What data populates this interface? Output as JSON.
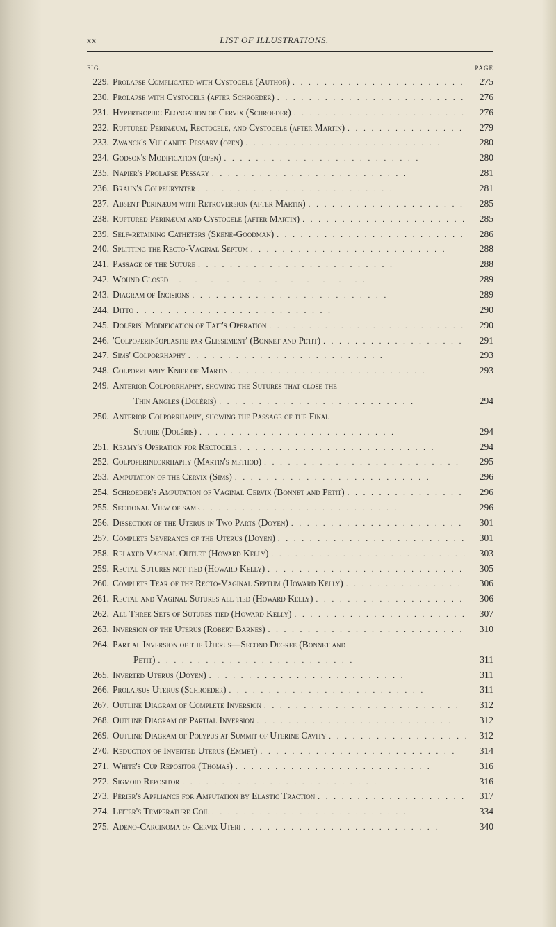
{
  "page": {
    "roman_numeral": "xx",
    "header_title": "LIST OF ILLUSTRATIONS.",
    "fig_label": "FIG.",
    "page_label": "PAGE",
    "colors": {
      "background": "#ebe5d5",
      "text": "#2a2a2a",
      "edge_shadow": "#c8c2b0"
    },
    "typography": {
      "body_font_family": "Georgia, Times New Roman, serif",
      "body_font_size": 13.5,
      "line_height": 1.62,
      "header_font_size": 13,
      "small_caps": true
    }
  },
  "entries": [
    {
      "num": "229.",
      "text": "Prolapse Complicated with Cystocele (Author)",
      "page": "275"
    },
    {
      "num": "230.",
      "text": "Prolapse with Cystocele (after Schroeder)",
      "page": "276"
    },
    {
      "num": "231.",
      "text": "Hypertrophic Elongation of Cervix (Schroeder)",
      "page": "276"
    },
    {
      "num": "232.",
      "text": "Ruptured Perinæum, Rectocele, and Cystocele (after Martin)",
      "page": "279"
    },
    {
      "num": "233.",
      "text": "Zwanck's Vulcanite Pessary (open)",
      "page": "280"
    },
    {
      "num": "234.",
      "text": "Godson's Modification (open)",
      "page": "280"
    },
    {
      "num": "235.",
      "text": "Napier's Prolapse Pessary",
      "page": "281"
    },
    {
      "num": "236.",
      "text": "Braun's Colpeurynter",
      "page": "281"
    },
    {
      "num": "237.",
      "text": "Absent Perinæum with Retroversion (after Martin)",
      "page": "285"
    },
    {
      "num": "238.",
      "text": "Ruptured Perinæum and Cystocele (after Martin)",
      "page": "285"
    },
    {
      "num": "239.",
      "text": "Self-retaining Catheters (Skene-Goodman)",
      "page": "286"
    },
    {
      "num": "240.",
      "text": "Splitting the Recto-Vaginal Septum",
      "page": "288"
    },
    {
      "num": "241.",
      "text": "Passage of the Suture",
      "page": "288"
    },
    {
      "num": "242.",
      "text": "Wound Closed",
      "page": "289"
    },
    {
      "num": "243.",
      "text": "Diagram of Incisions",
      "page": "289"
    },
    {
      "num": "244.",
      "text": "Ditto",
      "page": "290"
    },
    {
      "num": "245.",
      "text": "Doléris' Modification of Tait's Operation",
      "page": "290"
    },
    {
      "num": "246.",
      "text": "'Colpoperinéoplastie par Glissement' (Bonnet and Petit)",
      "page": "291"
    },
    {
      "num": "247.",
      "text": "Sims' Colporrhaphy",
      "page": "293"
    },
    {
      "num": "248.",
      "text": "Colporrhaphy Knife of Martin",
      "page": "293"
    },
    {
      "num": "249.",
      "text": "Anterior Colporrhaphy, showing the Sutures that close the",
      "cont": "Thin Angles (Doléris)",
      "page": "294"
    },
    {
      "num": "250.",
      "text": "Anterior Colporrhaphy, showing the Passage of the Final",
      "cont": "Suture (Doléris)",
      "page": "294"
    },
    {
      "num": "251.",
      "text": "Reamy's Operation for Rectocele",
      "page": "294"
    },
    {
      "num": "252.",
      "text": "Colpoperineorrhaphy (Martin's method)",
      "page": "295"
    },
    {
      "num": "253.",
      "text": "Amputation of the Cervix (Sims)",
      "page": "296"
    },
    {
      "num": "254.",
      "text": "Schroeder's Amputation of Vaginal Cervix (Bonnet and Petit)",
      "page": "296"
    },
    {
      "num": "255.",
      "text": "Sectional View of same",
      "page": "296"
    },
    {
      "num": "256.",
      "text": "Dissection of the Uterus in Two Parts (Doyen)",
      "page": "301"
    },
    {
      "num": "257.",
      "text": "Complete Severance of the Uterus (Doyen)",
      "page": "301"
    },
    {
      "num": "258.",
      "text": "Relaxed Vaginal Outlet (Howard Kelly)",
      "page": "303"
    },
    {
      "num": "259.",
      "text": "Rectal Sutures not tied (Howard Kelly)",
      "page": "305"
    },
    {
      "num": "260.",
      "text": "Complete Tear of the Recto-Vaginal Septum (Howard Kelly)",
      "page": "306"
    },
    {
      "num": "261.",
      "text": "Rectal and Vaginal Sutures all tied (Howard Kelly)",
      "page": "306"
    },
    {
      "num": "262.",
      "text": "All Three Sets of Sutures tied (Howard Kelly)",
      "page": "307"
    },
    {
      "num": "263.",
      "text": "Inversion of the Uterus (Robert Barnes)",
      "page": "310"
    },
    {
      "num": "264.",
      "text": "Partial Inversion of the Uterus—Second Degree (Bonnet and",
      "cont": "Petit)",
      "page": "311"
    },
    {
      "num": "265.",
      "text": "Inverted Uterus (Doyen)",
      "page": "311"
    },
    {
      "num": "266.",
      "text": "Prolapsus Uterus (Schroeder)",
      "page": "311"
    },
    {
      "num": "267.",
      "text": "Outline Diagram of Complete Inversion",
      "page": "312"
    },
    {
      "num": "268.",
      "text": "Outline Diagram of Partial Inversion",
      "page": "312"
    },
    {
      "num": "269.",
      "text": "Outline Diagram of Polypus at Summit of Uterine Cavity",
      "page": "312"
    },
    {
      "num": "270.",
      "text": "Reduction of Inverted Uterus (Emmet)",
      "page": "314"
    },
    {
      "num": "271.",
      "text": "White's Cup Repositor (Thomas)",
      "page": "316"
    },
    {
      "num": "272.",
      "text": "Sigmoid Repositor",
      "page": "316"
    },
    {
      "num": "273.",
      "text": "Périer's Appliance for Amputation by Elastic Traction",
      "page": "317"
    },
    {
      "num": "274.",
      "text": "Leiter's Temperature Coil",
      "page": "334"
    },
    {
      "num": "275.",
      "text": "Adeno-Carcinoma of Cervix Uteri",
      "page": "340"
    }
  ]
}
